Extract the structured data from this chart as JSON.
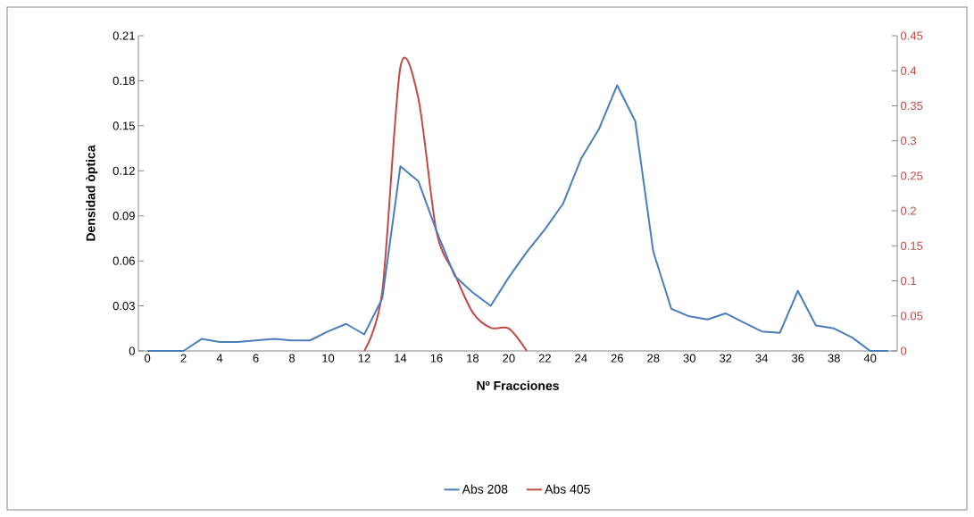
{
  "chart_data": {
    "type": "line",
    "xlabel": "Nº Fracciones",
    "ylabel": "Densidad òptica",
    "x": [
      0,
      1,
      2,
      3,
      4,
      5,
      6,
      7,
      8,
      9,
      10,
      11,
      12,
      13,
      14,
      15,
      16,
      17,
      18,
      19,
      20,
      21,
      22,
      23,
      24,
      25,
      26,
      27,
      28,
      29,
      30,
      31,
      32,
      33,
      34,
      35,
      36,
      37,
      38,
      39,
      40,
      41
    ],
    "xlim": [
      -0.5,
      41.5
    ],
    "xticks": [
      0,
      2,
      4,
      6,
      8,
      10,
      12,
      14,
      16,
      18,
      20,
      22,
      24,
      26,
      28,
      30,
      32,
      34,
      36,
      38,
      40
    ],
    "ylim": [
      0,
      0.21
    ],
    "yticks": [
      0,
      0.03,
      0.06,
      0.09,
      0.12,
      0.15,
      0.18,
      0.21
    ],
    "y2lim": [
      0,
      0.45
    ],
    "y2ticks": [
      0,
      0.05,
      0.1,
      0.15,
      0.2,
      0.25,
      0.3,
      0.35,
      0.4,
      0.45
    ],
    "legend": "bottom",
    "grid": false,
    "series": [
      {
        "name": "Abs 208",
        "color": "#4a7ebb",
        "values": [
          0,
          0,
          0,
          0.008,
          0.006,
          0.006,
          0.007,
          0.008,
          0.007,
          0.007,
          0.013,
          0.018,
          0.011,
          0.035,
          0.123,
          0.113,
          0.08,
          0.05,
          0.039,
          0.03,
          0.049,
          0.066,
          0.081,
          0.098,
          0.128,
          0.148,
          0.177,
          0.153,
          0.066,
          0.028,
          0.023,
          0.021,
          0.025,
          0.019,
          0.013,
          0.012,
          0.04,
          0.017,
          0.015,
          0.009,
          0,
          0
        ]
      },
      {
        "name": "Abs 405",
        "color": "#be4b48",
        "axis": "y2",
        "x": [
          12,
          13,
          14,
          15,
          16,
          17,
          18,
          19,
          20,
          21
        ],
        "values": [
          0,
          0.085,
          0.405,
          0.36,
          0.17,
          0.11,
          0.055,
          0.033,
          0.032,
          0
        ]
      }
    ]
  }
}
